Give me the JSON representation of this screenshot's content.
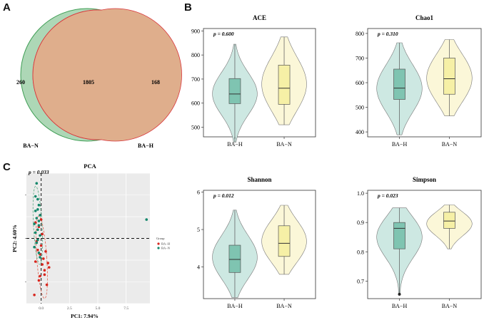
{
  "panels": {
    "a": "A",
    "b": "B",
    "c": "C"
  },
  "venn": {
    "sets": [
      {
        "name": "BA−N",
        "unique": "260",
        "color": "#9fd0a9",
        "stroke": "#3f9e55"
      },
      {
        "name": "BA−H",
        "unique": "168",
        "color": "#f3a3a6",
        "stroke": "#d9363c"
      }
    ],
    "overlap": "1805",
    "overlap_color": "#dfae8c"
  },
  "groups": [
    "BA−H",
    "BA−N"
  ],
  "group_colors": {
    "BA−H": "#cde8e2",
    "BA−N": "#fbf7d8"
  },
  "box_colors": {
    "BA−H": "#7fc4b1",
    "BA−N": "#f6f0a6"
  },
  "violins": [
    {
      "key": "ace",
      "title": "ACE",
      "pval": "p = 0.600",
      "ylim": [
        460,
        910
      ],
      "ticks": [
        "500",
        "600",
        "700",
        "800",
        "900"
      ],
      "tick_values": [
        500,
        600,
        700,
        800,
        900
      ],
      "stats": [
        {
          "min": 438,
          "q1": 598,
          "median": 638,
          "q3": 702,
          "max": 845
        },
        {
          "min": 510,
          "q1": 595,
          "median": 662,
          "q3": 758,
          "max": 875
        }
      ]
    },
    {
      "key": "chao1",
      "title": "Chao1",
      "pval": "p = 0.310",
      "ylim": [
        380,
        820
      ],
      "ticks": [
        "400",
        "500",
        "600",
        "700",
        "800"
      ],
      "tick_values": [
        400,
        500,
        600,
        700,
        800
      ],
      "stats": [
        {
          "min": 388,
          "q1": 532,
          "median": 578,
          "q3": 655,
          "max": 762
        },
        {
          "min": 465,
          "q1": 553,
          "median": 616,
          "q3": 700,
          "max": 775
        }
      ]
    },
    {
      "key": "shannon",
      "title": "Shannon",
      "pval": "p = 0.012",
      "ylim": [
        3.15,
        6.05
      ],
      "ticks": [
        "4",
        "5",
        "6"
      ],
      "tick_values": [
        4,
        5,
        6
      ],
      "stats": [
        {
          "min": 3.18,
          "q1": 3.85,
          "median": 4.2,
          "q3": 4.58,
          "max": 5.52
        },
        {
          "min": 3.8,
          "q1": 4.28,
          "median": 4.63,
          "q3": 5.1,
          "max": 5.65
        }
      ]
    },
    {
      "key": "simpson",
      "title": "Simpson",
      "pval": "p = 0.023",
      "ylim": [
        0.64,
        1.01
      ],
      "ticks": [
        "0.7",
        "0.8",
        "0.9",
        "1.0"
      ],
      "tick_values": [
        0.7,
        0.8,
        0.9,
        1.0
      ],
      "stats": [
        {
          "min": 0.655,
          "q1": 0.81,
          "median": 0.88,
          "q3": 0.9,
          "max": 0.95,
          "outlier": 0.655
        },
        {
          "min": 0.81,
          "q1": 0.88,
          "median": 0.905,
          "q3": 0.935,
          "max": 0.96
        }
      ]
    }
  ],
  "pca": {
    "title": "PCA",
    "pval": "p = 0.033",
    "xlabel": "PC1: 7.94%",
    "ylabel": "PC2: 4.60%",
    "xticks": [
      "0.0",
      "2.5",
      "5.0",
      "7.5"
    ],
    "xtick_values": [
      0,
      2.5,
      5,
      7.5
    ],
    "ytick_values": [
      3,
      0,
      -3
    ],
    "ylim": [
      -4.5,
      4.5
    ],
    "xlim": [
      -1.3,
      9.6
    ],
    "legend_title": "Group",
    "legend": [
      {
        "name": "BA−H",
        "color": "#d7261e"
      },
      {
        "name": "BA−N",
        "color": "#12876b"
      }
    ],
    "points_h": [
      [
        -0.5,
        -1.6
      ],
      [
        0.1,
        -1.8
      ],
      [
        0.3,
        -2.5
      ],
      [
        -0.2,
        -2.9
      ],
      [
        0.5,
        -3.2
      ],
      [
        -0.6,
        -3.9
      ],
      [
        0.7,
        -2.0
      ],
      [
        0.0,
        -0.5
      ],
      [
        -0.1,
        -1.1
      ],
      [
        0.2,
        -1.4
      ],
      [
        -0.3,
        -0.8
      ],
      [
        0.4,
        -0.9
      ],
      [
        -0.4,
        -0.2
      ],
      [
        0.1,
        0.3
      ],
      [
        -0.2,
        0.8
      ],
      [
        0.0,
        1.3
      ],
      [
        -0.5,
        1.1
      ],
      [
        0.3,
        -2.2
      ],
      [
        -0.1,
        -2.6
      ],
      [
        0.6,
        -1.7
      ]
    ],
    "points_n": [
      [
        -0.4,
        3.8
      ],
      [
        -0.3,
        2.7
      ],
      [
        -0.2,
        2.3
      ],
      [
        -0.5,
        1.9
      ],
      [
        -0.1,
        1.6
      ],
      [
        -0.4,
        1.4
      ],
      [
        -0.6,
        1.0
      ],
      [
        -0.2,
        0.9
      ],
      [
        -0.3,
        0.6
      ],
      [
        -0.5,
        0.4
      ],
      [
        -0.1,
        0.2
      ],
      [
        -0.3,
        -0.1
      ],
      [
        -0.4,
        -0.3
      ],
      [
        -0.6,
        -0.6
      ],
      [
        -0.2,
        -1.0
      ],
      [
        -0.1,
        -1.3
      ],
      [
        -0.3,
        2.0
      ],
      [
        9.3,
        1.3
      ],
      [
        -0.5,
        2.9
      ],
      [
        -0.2,
        1.2
      ]
    ]
  }
}
